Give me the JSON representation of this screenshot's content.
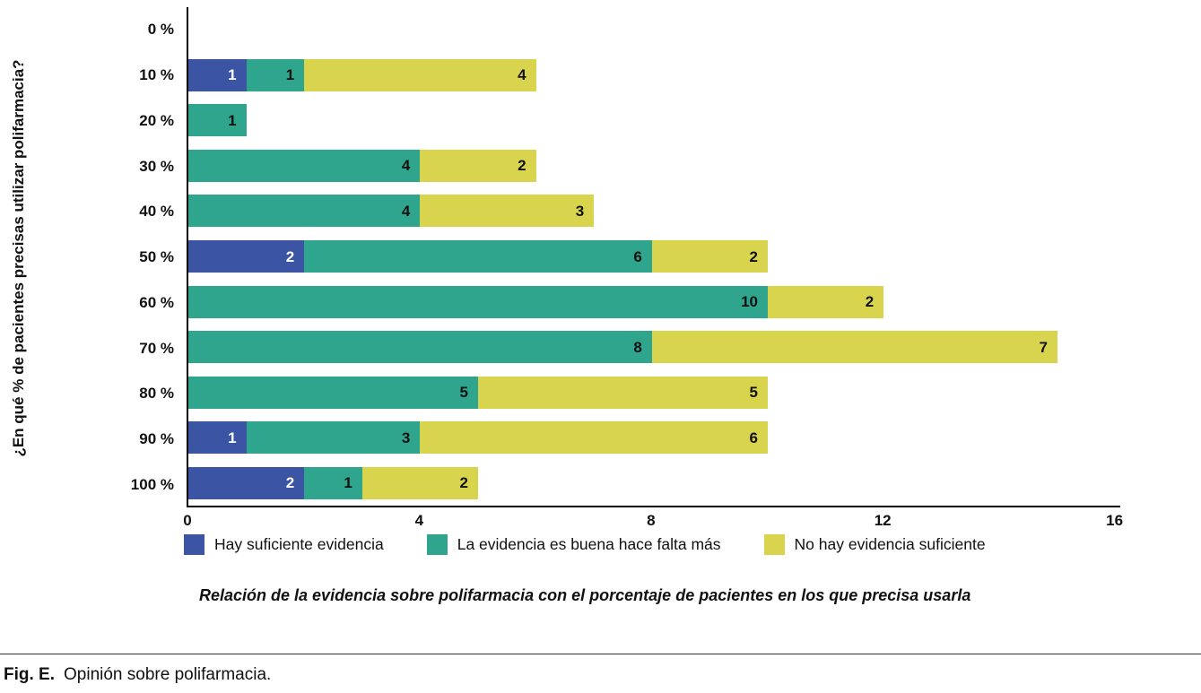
{
  "figure": {
    "fig_label": "Fig. E.",
    "fig_caption": "Opinión sobre polifarmacia."
  },
  "chart_data": {
    "type": "bar",
    "orientation": "horizontal",
    "stacked": true,
    "grid": false,
    "legend_position": "bottom",
    "ylabel": "¿En qué % de pacientes precisas utilizar polifarmacia?",
    "xlabel": "",
    "title": "",
    "categories": [
      "0 %",
      "10 %",
      "20 %",
      "30 %",
      "40 %",
      "50 %",
      "60 %",
      "70 %",
      "80 %",
      "90 %",
      "100 %"
    ],
    "xlim": [
      0,
      16
    ],
    "x_ticks": [
      0,
      4,
      8,
      12,
      16
    ],
    "series": [
      {
        "name": "Hay suficiente evidencia",
        "color": "#3b54a4",
        "label_color": "#ffffff",
        "values": [
          0,
          1,
          0,
          0,
          0,
          2,
          0,
          0,
          0,
          1,
          2
        ]
      },
      {
        "name": "La evidencia es buena hace falta más",
        "color": "#2fa58d",
        "label_color": "#111111",
        "values": [
          0,
          1,
          1,
          4,
          4,
          6,
          10,
          8,
          5,
          3,
          1
        ]
      },
      {
        "name": "No hay evidencia suficiente",
        "color": "#d9d44e",
        "label_color": "#111111",
        "values": [
          0,
          4,
          0,
          2,
          3,
          2,
          2,
          7,
          5,
          6,
          2
        ]
      }
    ],
    "caption": "Relación de la evidencia sobre polifarmacia con el porcentaje de pacientes en los que precisa usarla"
  }
}
